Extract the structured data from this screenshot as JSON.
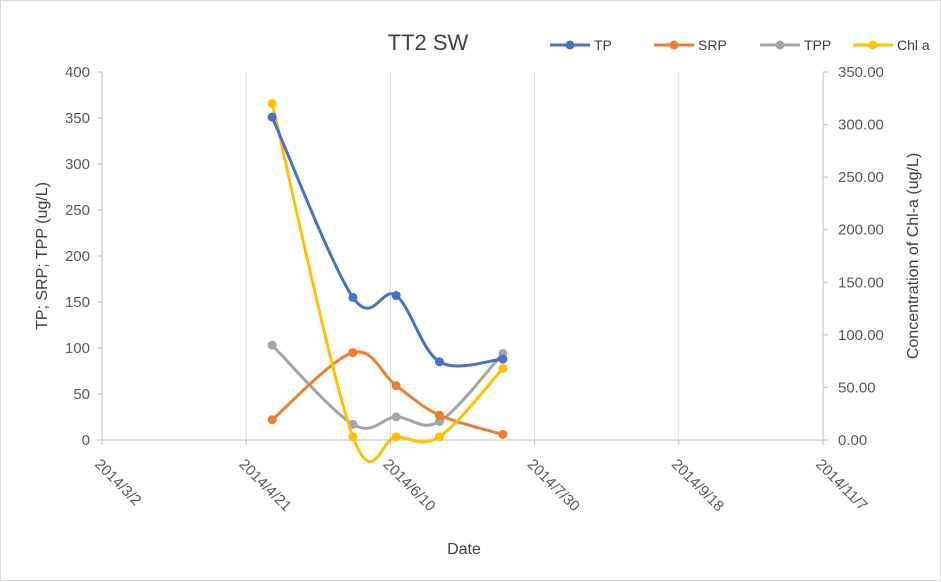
{
  "chart_data": {
    "type": "line",
    "title": "TT2 SW",
    "xlabel": "Date",
    "ylabel": "TP; SRP; TPP (ug/L)",
    "y2label": "Concentration of Chl-a (ug/L)",
    "xlim": [
      "2014-03-02",
      "2014-11-07"
    ],
    "ylim": [
      0,
      400
    ],
    "y2lim": [
      0,
      350
    ],
    "x_ticks": [
      "2014/3/2",
      "2014/4/21",
      "2014/6/10",
      "2014/7/30",
      "2014/9/18",
      "2014/11/7"
    ],
    "y_ticks": [
      "0",
      "50",
      "100",
      "150",
      "200",
      "250",
      "300",
      "350",
      "400"
    ],
    "y2_ticks": [
      "0.00",
      "50.00",
      "100.00",
      "150.00",
      "200.00",
      "250.00",
      "300.00",
      "350.00"
    ],
    "grid": "vertical",
    "legend_position": "top-right",
    "x": [
      "2014-04-30",
      "2014-05-28",
      "2014-06-12",
      "2014-06-27",
      "2014-07-19"
    ],
    "series": [
      {
        "name": "TP",
        "axis": "left",
        "color": "#4472c4",
        "values": [
          351,
          155,
          157,
          85,
          88
        ]
      },
      {
        "name": "SRP",
        "axis": "left",
        "color": "#ed7d31",
        "values": [
          22,
          95,
          59,
          27,
          6
        ]
      },
      {
        "name": "TPP",
        "axis": "left",
        "color": "#a5a5a5",
        "values": [
          103,
          17,
          25,
          20,
          94
        ]
      },
      {
        "name": "Chl a",
        "axis": "right",
        "color": "#ffc000",
        "values": [
          320,
          3,
          3,
          3,
          68
        ]
      }
    ]
  }
}
